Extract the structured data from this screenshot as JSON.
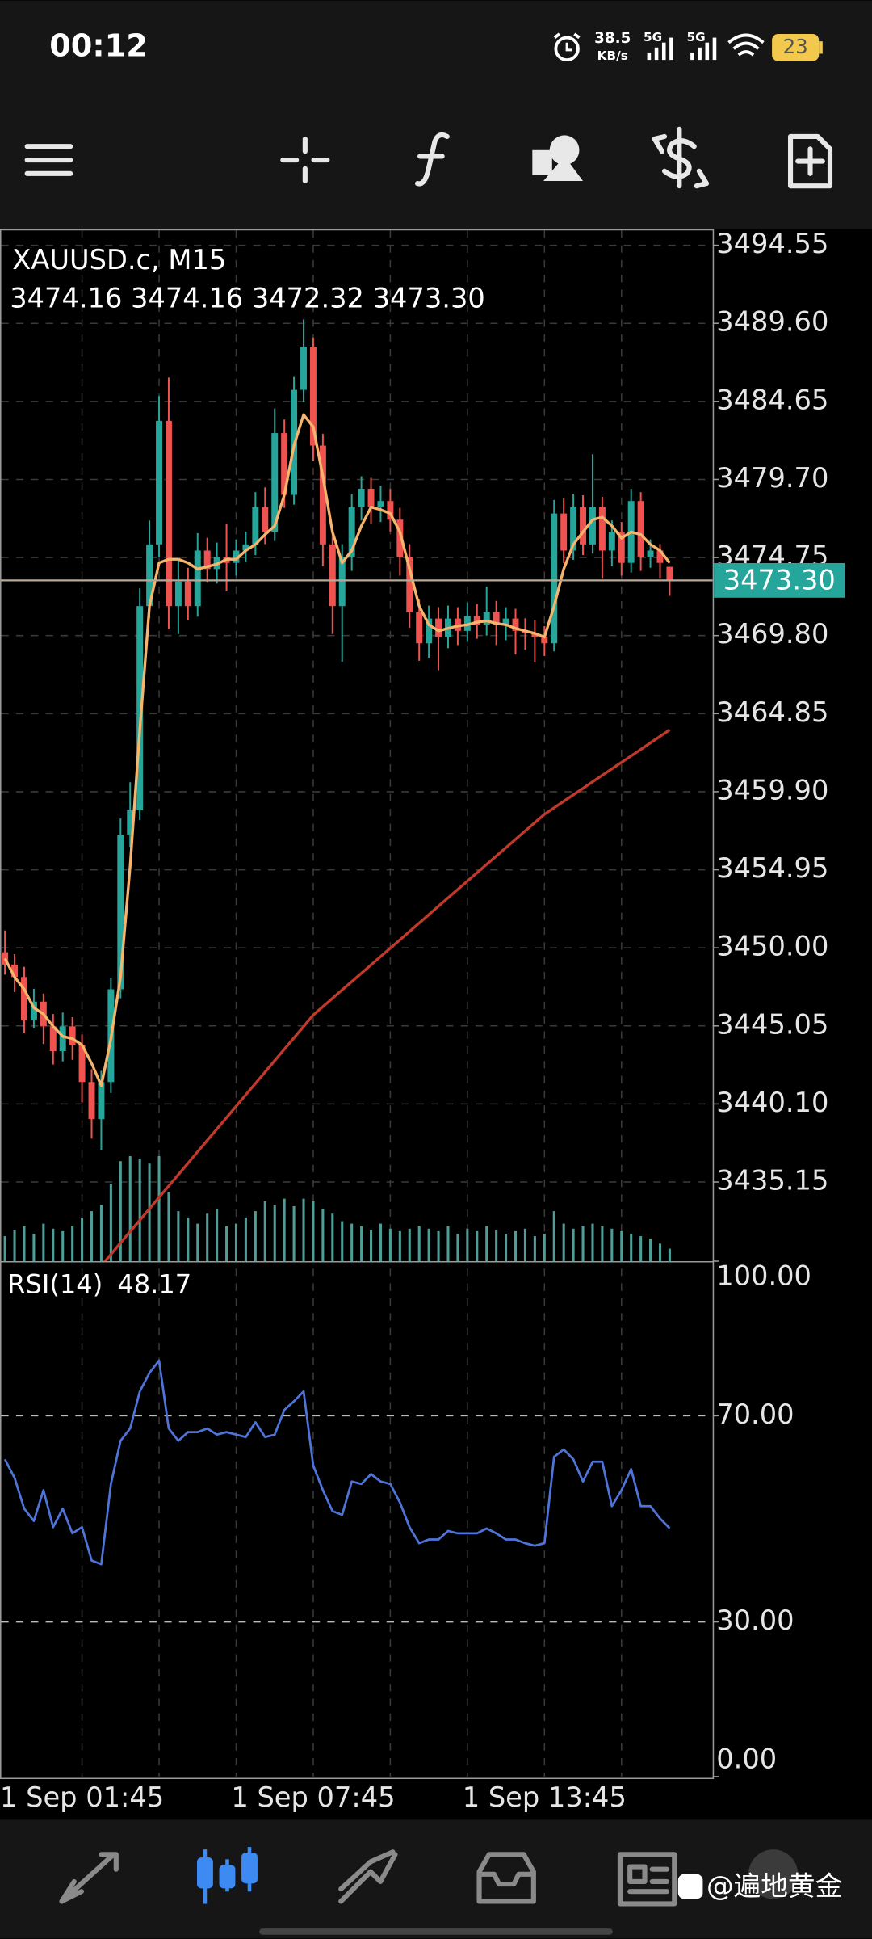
{
  "status_bar": {
    "time": "00:12",
    "net_speed": "38.5",
    "net_unit": "KB/s",
    "network": [
      "5G",
      "5G"
    ],
    "battery": "23"
  },
  "watermark": "@遍地黄金",
  "chart_data": [
    {
      "type": "candlestick",
      "title": "XAUUSD.c, M15",
      "ohlc_label": "3474.16 3474.16 3472.32 3473.30",
      "categories": [
        null,
        null,
        null,
        null,
        null,
        null,
        null,
        null,
        "1 Sep 01:45",
        null,
        null,
        null,
        null,
        null,
        null,
        null,
        null,
        null,
        null,
        null,
        null,
        null,
        null,
        null,
        null,
        null,
        null,
        null,
        null,
        null,
        null,
        null,
        "1 Sep 07:45",
        null,
        null,
        null,
        null,
        null,
        null,
        null,
        null,
        null,
        null,
        null,
        null,
        null,
        null,
        null,
        null,
        null,
        null,
        null,
        null,
        null,
        null,
        null,
        "1 Sep 13:45",
        null,
        null,
        null,
        null,
        null,
        null,
        null,
        null,
        null,
        null,
        null,
        null,
        null
      ],
      "open": [
        3449.72,
        3448.94,
        3448.15,
        3445.41,
        3446.59,
        3445.02,
        3443.45,
        3445.02,
        3443.84,
        3441.49,
        3439.14,
        3441.49,
        3447.37,
        3457.17,
        3458.73,
        3471.67,
        3475.58,
        3483.42,
        3471.67,
        3473.23,
        3471.67,
        3475.19,
        3474.02,
        3474.8,
        3474.41,
        3475.19,
        3475.58,
        3477.94,
        3476.37,
        3482.64,
        3478.72,
        3485.38,
        3488.12,
        3481.85,
        3475.58,
        3471.67,
        3474.8,
        3477.94,
        3479.11,
        3477.94,
        3478.33,
        3477.15,
        3474.8,
        3471.27,
        3469.31,
        3470.88,
        3469.71,
        3470.88,
        3470.1,
        3471.04,
        3470.49,
        3471.27,
        3470.49,
        3470.88,
        3470.1,
        3469.94,
        3469.71,
        3469.31,
        3477.54,
        3475.19,
        3477.94,
        3475.58,
        3477.94,
        3475.19,
        3476.37,
        3474.41,
        3478.33,
        3474.8,
        3475.19,
        3474.16
      ],
      "high": [
        3451.1,
        3449.6,
        3448.8,
        3447.4,
        3447.1,
        3445.8,
        3445.9,
        3445.6,
        3444.5,
        3442.3,
        3442.2,
        3448.1,
        3458.2,
        3460.5,
        3472.8,
        3477.1,
        3484.99,
        3486.16,
        3474.6,
        3474.1,
        3476.3,
        3476.0,
        3475.7,
        3476.9,
        3475.9,
        3476.4,
        3478.9,
        3479.2,
        3484.2,
        3483.5,
        3486.2,
        3489.85,
        3488.7,
        3482.6,
        3476.4,
        3475.6,
        3478.8,
        3479.9,
        3479.8,
        3479.3,
        3479.1,
        3477.9,
        3475.6,
        3472.1,
        3471.7,
        3471.6,
        3471.7,
        3471.6,
        3471.9,
        3471.8,
        3472.9,
        3472.0,
        3471.6,
        3471.5,
        3470.9,
        3470.8,
        3470.4,
        3478.4,
        3478.5,
        3478.8,
        3478.7,
        3481.3,
        3478.6,
        3477.1,
        3477.0,
        3479.1,
        3478.9,
        3475.9,
        3475.6,
        3474.16
      ],
      "low": [
        3448.3,
        3447.2,
        3444.6,
        3444.9,
        3443.9,
        3442.6,
        3442.8,
        3442.9,
        3440.2,
        3437.9,
        3437.18,
        3440.8,
        3446.8,
        3456.4,
        3458.1,
        3470.9,
        3474.8,
        3470.2,
        3469.9,
        3470.8,
        3471.0,
        3473.2,
        3473.1,
        3472.6,
        3473.6,
        3474.5,
        3474.9,
        3475.6,
        3475.8,
        3477.9,
        3478.1,
        3484.6,
        3480.9,
        3474.2,
        3469.9,
        3468.14,
        3473.9,
        3477.1,
        3476.9,
        3477.0,
        3476.4,
        3473.6,
        3470.3,
        3468.2,
        3468.4,
        3467.6,
        3469.0,
        3469.2,
        3469.4,
        3469.6,
        3469.8,
        3469.2,
        3469.5,
        3468.6,
        3468.9,
        3468.1,
        3468.5,
        3468.8,
        3474.4,
        3474.6,
        3474.9,
        3475.0,
        3473.4,
        3474.2,
        3473.6,
        3473.8,
        3473.9,
        3474.1,
        3473.4,
        3472.32
      ],
      "close": [
        3448.94,
        3448.15,
        3445.41,
        3446.59,
        3445.02,
        3443.45,
        3445.02,
        3443.84,
        3441.49,
        3439.14,
        3441.49,
        3447.37,
        3457.17,
        3458.73,
        3471.67,
        3475.58,
        3483.42,
        3471.67,
        3473.23,
        3471.67,
        3475.19,
        3474.02,
        3474.8,
        3474.41,
        3475.19,
        3475.58,
        3477.94,
        3476.37,
        3482.64,
        3478.72,
        3485.38,
        3488.12,
        3481.85,
        3475.58,
        3471.67,
        3474.8,
        3477.94,
        3479.11,
        3477.94,
        3478.33,
        3477.15,
        3474.8,
        3471.27,
        3469.31,
        3470.88,
        3469.71,
        3470.88,
        3470.1,
        3471.04,
        3470.49,
        3471.27,
        3470.49,
        3470.88,
        3470.1,
        3469.94,
        3469.71,
        3469.31,
        3477.54,
        3475.19,
        3477.94,
        3475.58,
        3477.94,
        3475.19,
        3476.37,
        3474.41,
        3478.33,
        3474.8,
        3475.19,
        3474.41,
        3473.3
      ],
      "last_price_label": "3473.30",
      "up_color": "#26a69a",
      "down_color": "#ef5350",
      "moving_averages": [
        {
          "color": "#f6b46c",
          "values": [
            3449.33,
            3448.15,
            3447.37,
            3446.2,
            3445.8,
            3445.02,
            3444.39,
            3444.24,
            3443.84,
            3442.67,
            3441.26,
            3444.24,
            3448.15,
            3455.21,
            3463.83,
            3471.67,
            3474.41,
            3474.64,
            3474.64,
            3474.41,
            3474.02,
            3474.17,
            3474.33,
            3474.64,
            3474.64,
            3475.19,
            3475.58,
            3476.21,
            3476.76,
            3478.72,
            3481.85,
            3483.81,
            3483.03,
            3479.89,
            3476.37,
            3474.41,
            3475.19,
            3476.76,
            3477.94,
            3477.78,
            3477.54,
            3476.37,
            3474.02,
            3471.67,
            3470.49,
            3470.1,
            3470.26,
            3470.41,
            3470.49,
            3470.65,
            3470.73,
            3470.57,
            3470.49,
            3470.26,
            3470.1,
            3469.94,
            3469.71,
            3471.67,
            3474.02,
            3475.58,
            3476.37,
            3477.15,
            3477.31,
            3476.76,
            3475.98,
            3476.37,
            3476.21,
            3475.58,
            3475.19,
            3474.41
          ]
        },
        {
          "color": "#c0392b",
          "values": [
            null,
            null,
            null,
            null,
            null,
            null,
            null,
            null,
            null,
            null,
            3429.84,
            3430.56,
            3431.29,
            3432.01,
            3432.73,
            3433.45,
            3434.18,
            3434.9,
            3435.62,
            3436.34,
            3437.07,
            3437.79,
            3438.51,
            3439.23,
            3439.96,
            3440.68,
            3441.4,
            3442.12,
            3442.85,
            3443.57,
            3444.29,
            3445.01,
            3445.74,
            3446.27,
            3446.8,
            3447.33,
            3447.86,
            3448.39,
            3448.92,
            3449.45,
            3449.98,
            3450.51,
            3451.04,
            3451.57,
            3452.1,
            3452.64,
            3453.17,
            3453.7,
            3454.23,
            3454.76,
            3455.29,
            3455.82,
            3456.35,
            3456.88,
            3457.41,
            3457.94,
            3458.47,
            3458.88,
            3459.29,
            3459.7,
            3460.11,
            3460.53,
            3460.94,
            3461.35,
            3461.76,
            3462.17,
            3462.58,
            3463.0,
            3463.41,
            3463.82
          ]
        }
      ],
      "volume": [
        20,
        25,
        28,
        22,
        30,
        26,
        24,
        28,
        35,
        40,
        45,
        62,
        80,
        84,
        82,
        78,
        84,
        55,
        40,
        35,
        30,
        38,
        42,
        28,
        30,
        35,
        40,
        48,
        45,
        50,
        44,
        50,
        48,
        42,
        38,
        32,
        30,
        28,
        25,
        30,
        26,
        24,
        26,
        28,
        26,
        24,
        28,
        22,
        26,
        24,
        28,
        25,
        22,
        24,
        26,
        20,
        22,
        40,
        30,
        26,
        28,
        30,
        28,
        26,
        24,
        22,
        20,
        18,
        14,
        10
      ],
      "volume_color": "#4f9d97",
      "ylim": [
        3430.13,
        3495.57
      ],
      "yticks": [
        3494.55,
        {
          "value": 3489.6,
          "label": "3489.60"
        },
        3484.65,
        {
          "value": 3479.7,
          "label": "3479.70"
        },
        {
          "value": 3474.75,
          "label": "3474.75"
        },
        {
          "value": 3469.8,
          "label": "3469.80"
        },
        3464.85,
        {
          "value": 3459.9,
          "label": "3459.90"
        },
        3454.95,
        {
          "value": 3450,
          "label": "3450.00"
        },
        3445.05,
        {
          "value": 3440.1,
          "label": "3440.10"
        },
        3435.15
      ],
      "grid": true
    },
    {
      "type": "line",
      "title": "RSI(14)",
      "values": [
        61.56,
        57.96,
        51.98,
        49.58,
        55.57,
        48.38,
        51.98,
        47.19,
        48.38,
        41.92,
        41.2,
        56.77,
        65.15,
        67.54,
        74.73,
        78.32,
        80.72,
        67.54,
        65.15,
        66.83,
        66.83,
        67.54,
        66.35,
        66.83,
        66.35,
        65.87,
        68.74,
        65.87,
        66.35,
        71.14,
        72.81,
        74.73,
        60.36,
        55.57,
        51.5,
        50.78,
        57.25,
        56.77,
        58.68,
        57.25,
        56.77,
        53.17,
        48.38,
        45.27,
        45.99,
        45.99,
        47.66,
        47.19,
        47.19,
        47.19,
        48.14,
        47.19,
        45.99,
        45.99,
        45.27,
        44.79,
        45.27,
        62.04,
        63.47,
        61.56,
        57.25,
        61.08,
        61.08,
        52.46,
        55.57,
        59.64,
        52.46,
        52.46,
        50.06,
        48.17
      ],
      "color": "#4f74d9",
      "ylim": [
        0,
        100
      ],
      "yticks": [
        {
          "value": 100,
          "label": "100.00"
        },
        {
          "value": 70,
          "label": "70.00"
        },
        {
          "value": 30,
          "label": "30.00"
        },
        {
          "value": 0,
          "label": "0.00"
        }
      ],
      "grid": true
    }
  ]
}
